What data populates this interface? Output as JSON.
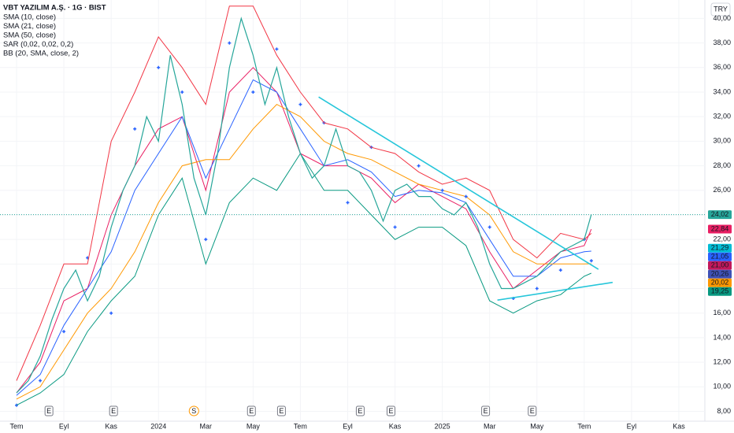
{
  "chart_data": {
    "type": "line",
    "title": "VBT YAZILIM A.Ş. · 1G · BIST",
    "currency": "TRY",
    "xlim": [
      -0.7,
      29.1
    ],
    "ylim": [
      7.2,
      41.5
    ],
    "grid": true,
    "xticks": [
      {
        "value": 0,
        "label": "Tem"
      },
      {
        "value": 2,
        "label": "Eyl"
      },
      {
        "value": 4,
        "label": "Kas"
      },
      {
        "value": 6,
        "label": "2024"
      },
      {
        "value": 8,
        "label": "Mar"
      },
      {
        "value": 10,
        "label": "May"
      },
      {
        "value": 12,
        "label": "Tem"
      },
      {
        "value": 14,
        "label": "Eyl"
      },
      {
        "value": 16,
        "label": "Kas"
      },
      {
        "value": 18,
        "label": "2025"
      },
      {
        "value": 20,
        "label": "Mar"
      },
      {
        "value": 22,
        "label": "May"
      },
      {
        "value": 24,
        "label": "Tem"
      },
      {
        "value": 26,
        "label": "Eyl"
      },
      {
        "value": 28,
        "label": "Kas"
      }
    ],
    "yticks": [
      {
        "value": 8,
        "label": "8,00"
      },
      {
        "value": 10,
        "label": "10,00"
      },
      {
        "value": 12,
        "label": "12,00"
      },
      {
        "value": 14,
        "label": "14,00"
      },
      {
        "value": 16,
        "label": "16,00"
      },
      {
        "value": 18,
        "label": "18,00"
      },
      {
        "value": 20,
        "label": "20,00"
      },
      {
        "value": 22,
        "label": "22,00"
      },
      {
        "value": 24,
        "label": "24,00"
      },
      {
        "value": 26,
        "label": "26,00"
      },
      {
        "value": 28,
        "label": "28,00"
      },
      {
        "value": 30,
        "label": "30,00"
      },
      {
        "value": 32,
        "label": "32,00"
      },
      {
        "value": 34,
        "label": "34,00"
      },
      {
        "value": 36,
        "label": "36,00"
      },
      {
        "value": 38,
        "label": "38,00"
      },
      {
        "value": 40,
        "label": "40,00"
      }
    ],
    "price": {
      "color": "#26a69a",
      "x": [
        0,
        0.5,
        1,
        1.5,
        2,
        2.5,
        3,
        3.5,
        4,
        4.5,
        5,
        5.5,
        6,
        6.5,
        7,
        7.5,
        8,
        8.5,
        9,
        9.5,
        10,
        10.5,
        11,
        11.5,
        12,
        12.5,
        13,
        13.5,
        14,
        14.5,
        15,
        15.5,
        16,
        16.5,
        17,
        17.5,
        18,
        18.5,
        19,
        19.5,
        20,
        20.5,
        21,
        21.5,
        22,
        22.5,
        23,
        23.5,
        24,
        24.3
      ],
      "values": [
        9.5,
        10.5,
        12.5,
        15.5,
        18,
        19.5,
        17,
        19,
        23,
        26,
        28,
        32,
        30,
        37,
        33,
        27,
        24,
        29,
        36,
        40,
        37,
        33,
        36,
        32,
        29,
        27,
        28,
        31,
        28,
        27.5,
        26,
        23.5,
        26,
        26.5,
        25.5,
        25.5,
        24.5,
        24,
        25,
        23,
        20,
        18,
        18,
        18.5,
        19,
        20,
        21,
        21.5,
        22,
        24.02
      ]
    },
    "series": [
      {
        "name": "SMA (10, close)",
        "color": "#e91e63",
        "style": "line",
        "x": [
          0,
          1,
          2,
          3,
          4,
          5,
          6,
          7,
          8,
          9,
          10,
          11,
          12,
          13,
          14,
          15,
          16,
          17,
          18,
          19,
          20,
          21,
          22,
          23,
          24,
          24.3
        ],
        "values": [
          9.5,
          12,
          17,
          18,
          24,
          28,
          31,
          32,
          26,
          34,
          36,
          34,
          29,
          28,
          28,
          27,
          25,
          26.5,
          25.5,
          24.5,
          21,
          18,
          19.5,
          21,
          21.5,
          22.84
        ]
      },
      {
        "name": "SMA (21, close)",
        "color": "#2962ff",
        "style": "line",
        "x": [
          0,
          1,
          2,
          3,
          4,
          5,
          6,
          7,
          8,
          9,
          10,
          11,
          12,
          13,
          14,
          15,
          16,
          17,
          18,
          19,
          20,
          21,
          22,
          23,
          24,
          24.3
        ],
        "values": [
          9.3,
          11,
          15,
          18,
          21,
          26,
          29,
          32,
          27,
          31,
          35,
          34,
          31,
          28,
          28.5,
          27.5,
          25.5,
          26,
          25.8,
          25,
          22,
          19,
          19,
          20.5,
          21,
          21.05
        ]
      },
      {
        "name": "SMA (50, close)",
        "color": "#ff9800",
        "style": "line",
        "x": [
          0,
          1,
          2,
          3,
          4,
          5,
          6,
          7,
          8,
          9,
          10,
          11,
          12,
          13,
          14,
          15,
          16,
          17,
          18,
          19,
          20,
          21,
          22,
          23,
          24,
          24.3
        ],
        "values": [
          9,
          10,
          13,
          16,
          18,
          21,
          25,
          28,
          28.5,
          28.5,
          31,
          33,
          32,
          30,
          29,
          28.5,
          27.5,
          26.5,
          26,
          25.5,
          24,
          21,
          20,
          20,
          20,
          20.02
        ]
      },
      {
        "name": "SAR (0,02, 0,02, 0,2)",
        "color": "#2962ff",
        "style": "markers",
        "x": [
          0,
          1,
          2,
          3,
          4,
          5,
          6,
          7,
          8,
          9,
          10,
          11,
          12,
          13,
          14,
          15,
          16,
          17,
          18,
          19,
          20,
          21,
          22,
          23,
          24,
          24.3
        ],
        "values": [
          8.5,
          10.5,
          14.5,
          20.5,
          16,
          31,
          36,
          34,
          22,
          38,
          34,
          37.5,
          33,
          31.5,
          25,
          29.5,
          23,
          28,
          26,
          25.5,
          23,
          17.2,
          18,
          19.5,
          22,
          20.26
        ]
      },
      {
        "name": "BB (20, SMA, close, 2)",
        "color": "#f23645",
        "style": "line",
        "x": [
          0,
          1,
          2,
          3,
          4,
          5,
          6,
          7,
          8,
          9,
          10,
          11,
          12,
          13,
          14,
          15,
          16,
          17,
          18,
          19,
          20,
          21,
          22,
          23,
          24,
          24.3
        ],
        "values": [
          10.5,
          15,
          20,
          20,
          30,
          34,
          38.5,
          36,
          33,
          41,
          41,
          37,
          34,
          31.5,
          31,
          29.5,
          29,
          27.5,
          26.5,
          27,
          26,
          22,
          20.5,
          22.5,
          22,
          22.5
        ]
      },
      {
        "color": "#089981",
        "style": "line",
        "x": [
          0,
          1,
          2,
          3,
          4,
          5,
          6,
          7,
          8,
          9,
          10,
          11,
          12,
          13,
          14,
          15,
          16,
          17,
          18,
          19,
          20,
          21,
          22,
          23,
          24,
          24.3
        ],
        "values": [
          8.5,
          9.5,
          11,
          14.5,
          17,
          19,
          24,
          27,
          20,
          25,
          27,
          26,
          29,
          26,
          26,
          24,
          22,
          23,
          23,
          21.5,
          17,
          16,
          17,
          17.5,
          19,
          19.25
        ]
      }
    ],
    "trendlines": [
      {
        "color": "#26c6da",
        "x": [
          12.77,
          24.6
        ],
        "values": [
          33.6,
          19.57
        ]
      },
      {
        "color": "#26c6da",
        "x": [
          20.33,
          25.2
        ],
        "values": [
          17.06,
          18.5
        ]
      }
    ],
    "events": [
      {
        "x": 1.37,
        "label": "E"
      },
      {
        "x": 4.1,
        "label": "E"
      },
      {
        "x": 7.5,
        "label": "S"
      },
      {
        "x": 9.93,
        "label": "E"
      },
      {
        "x": 11.2,
        "label": "E"
      },
      {
        "x": 14.53,
        "label": "E"
      },
      {
        "x": 15.83,
        "label": "E"
      },
      {
        "x": 19.83,
        "label": "E"
      },
      {
        "x": 21.8,
        "label": "E"
      }
    ],
    "price_labels": [
      {
        "value": 24.02,
        "label": "24,02",
        "color": "#26a69a"
      },
      {
        "value": 22.84,
        "label": "22,84",
        "color": "#e91e63"
      },
      {
        "value": 21.29,
        "label": "21,29",
        "color": "#00bcd4"
      },
      {
        "value": 21.05,
        "label": "21,05",
        "color": "#2962ff"
      },
      {
        "value": 21.0,
        "label": "21,00",
        "color": "#c2185b"
      },
      {
        "value": 20.26,
        "label": "20,26",
        "color": "#3f51b5"
      },
      {
        "value": 20.02,
        "label": "20,02",
        "color": "#ff9800"
      },
      {
        "value": 19.25,
        "label": "19,25",
        "color": "#089981"
      }
    ]
  }
}
